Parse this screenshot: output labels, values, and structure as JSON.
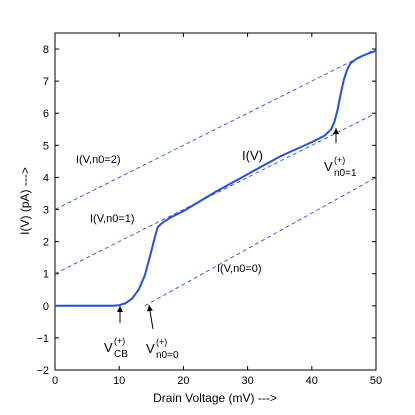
{
  "chart_data": {
    "type": "line",
    "xlabel": "Drain Voltage (mV) --->",
    "ylabel": "I(V)  (pA)  --->",
    "xlim": [
      0,
      50
    ],
    "ylim": [
      -2,
      8.5
    ],
    "xticks": [
      0,
      10,
      20,
      30,
      40,
      50
    ],
    "yticks": [
      -2,
      -1,
      0,
      1,
      2,
      3,
      4,
      5,
      6,
      7,
      8
    ],
    "grid": false,
    "series": [
      {
        "name": "I(V)",
        "style": "solid",
        "color": "#2a4fd6",
        "x": [
          0,
          9,
          10,
          11,
          12,
          13,
          14,
          15,
          15.5,
          16,
          16.5,
          17,
          18,
          20,
          25,
          30,
          35,
          40,
          42,
          43,
          43.5,
          44,
          44.5,
          45,
          45.5,
          46,
          47,
          48,
          50
        ],
        "y": [
          0,
          0,
          0.02,
          0.08,
          0.22,
          0.5,
          0.95,
          1.7,
          2.1,
          2.45,
          2.55,
          2.62,
          2.75,
          2.95,
          3.55,
          4.1,
          4.65,
          5.1,
          5.3,
          5.5,
          5.72,
          6.1,
          6.6,
          7.05,
          7.35,
          7.55,
          7.7,
          7.8,
          7.95
        ]
      },
      {
        "name": "I(V,n0=0)",
        "style": "dashed",
        "color": "#2a4fd6",
        "x": [
          14,
          50
        ],
        "y": [
          0,
          4
        ]
      },
      {
        "name": "I(V,n0=1)",
        "style": "dashed",
        "color": "#2a4fd6",
        "x": [
          0,
          50
        ],
        "y": [
          1,
          6
        ]
      },
      {
        "name": "I(V,n0=2)",
        "style": "dashed",
        "color": "#2a4fd6",
        "x": [
          0,
          50
        ],
        "y": [
          3,
          8
        ]
      }
    ],
    "annotations": [
      {
        "key": "lbl_n02",
        "text": "I(V,n0=2)"
      },
      {
        "key": "lbl_n01",
        "text": "I(V,n0=1)"
      },
      {
        "key": "lbl_n00",
        "text": "I(V,n0=0)"
      },
      {
        "key": "lbl_iv",
        "text": "I(V)"
      },
      {
        "key": "vcb",
        "main": "V",
        "sub": "CB",
        "sup": "(+)"
      },
      {
        "key": "vn00",
        "main": "V",
        "sub": "n0=0",
        "sup": "(+)"
      },
      {
        "key": "vn01",
        "main": "V",
        "sub": "n0=1",
        "sup": "(+)"
      }
    ]
  }
}
